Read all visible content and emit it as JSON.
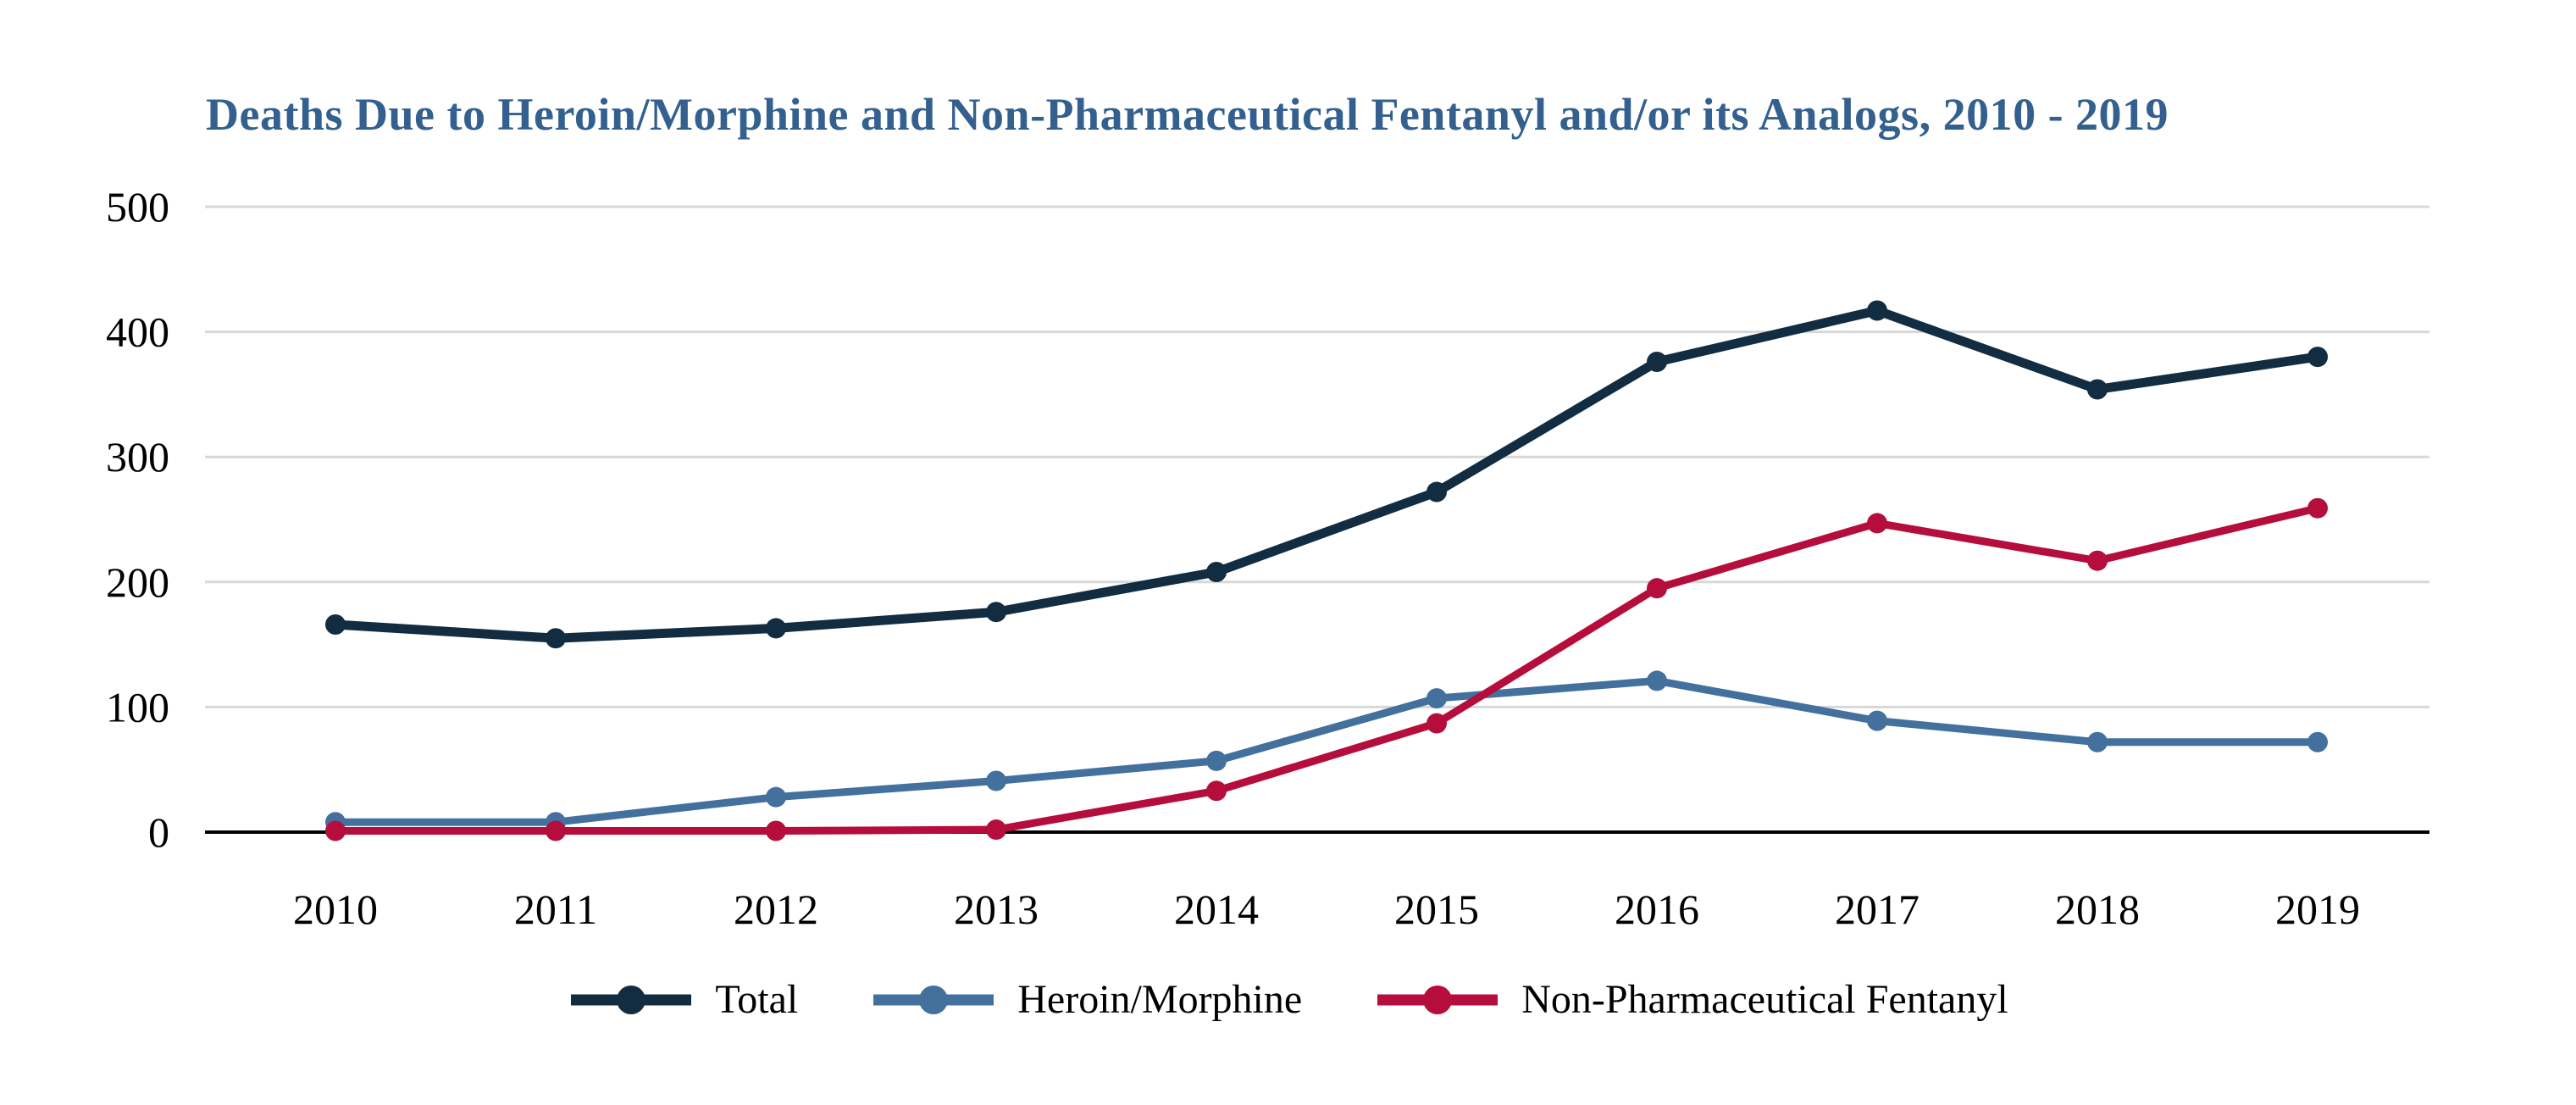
{
  "page": {
    "background_color": "#ffffff"
  },
  "chart_data": {
    "type": "line",
    "title": "Deaths Due to Heroin/Morphine and Non-Pharmaceutical Fentanyl and/or its Analogs, 2010 - 2019",
    "title_color": "#33608f",
    "xlabel": "",
    "ylabel": "",
    "categories": [
      "2010",
      "2011",
      "2012",
      "2013",
      "2014",
      "2015",
      "2016",
      "2017",
      "2018",
      "2019"
    ],
    "series": [
      {
        "name": "Total",
        "color": "#122c41",
        "values": [
          166,
          155,
          163,
          176,
          208,
          272,
          376,
          417,
          354,
          380
        ]
      },
      {
        "name": "Heroin/Morphine",
        "color": "#44709d",
        "values": [
          8,
          8,
          28,
          41,
          57,
          107,
          121,
          89,
          72,
          72
        ]
      },
      {
        "name": "Non-Pharmaceutical Fentanyl",
        "color": "#b50d3c",
        "values": [
          1,
          1,
          1,
          2,
          33,
          87,
          195,
          247,
          217,
          259
        ]
      }
    ],
    "ylim": [
      0,
      500
    ],
    "yticks": [
      0,
      100,
      200,
      300,
      400,
      500
    ],
    "grid": "horizontal",
    "gridline_color": "#d8d8d8",
    "axis_line_color": "#000000",
    "tick_label_color": "#000000",
    "legend_position": "bottom-center",
    "marker": "filled-circle"
  }
}
